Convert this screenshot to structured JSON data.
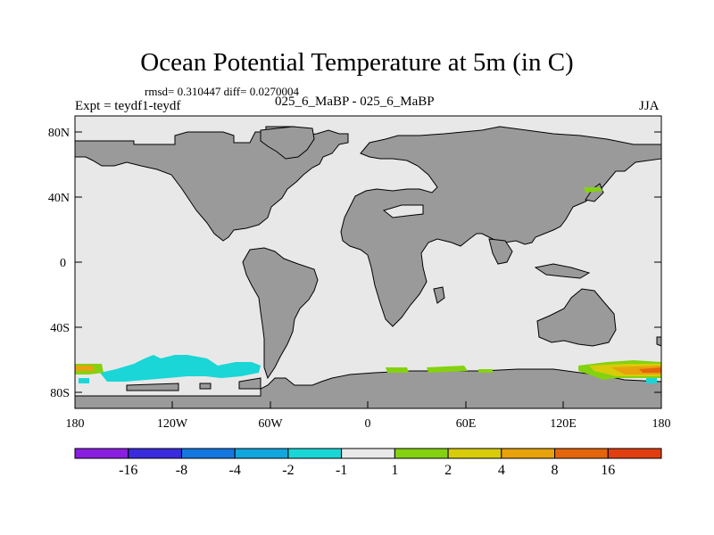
{
  "map": {
    "title": "Ocean Potential Temperature at 5m (in C)",
    "stats": "rmsd= 0.310447 diff= 0.0270004",
    "experiment": "Expt = teydf1-teydf",
    "case": "025_6_MaBP - 025_6_MaBP",
    "season": "JJA",
    "lat_labels": [
      "80N",
      "40N",
      "0",
      "40S",
      "80S"
    ],
    "lon_labels": [
      "180",
      "120W",
      "60W",
      "0",
      "60E",
      "120E",
      "180"
    ]
  },
  "colorbar": {
    "colors": [
      "#8a1ee0",
      "#3a2bdc",
      "#1477e0",
      "#12a6de",
      "#1ad6d6",
      "#e9e9e9",
      "#84d20f",
      "#d8cc0a",
      "#e7a20c",
      "#e5650c",
      "#e03e10"
    ],
    "labels": [
      "-16",
      "-8",
      "-4",
      "-2",
      "-1",
      "1",
      "2",
      "4",
      "8",
      "16"
    ]
  },
  "colors": {
    "ocean": "#e8e8e8",
    "land": "#9a9a9a",
    "coast": "#000000"
  }
}
